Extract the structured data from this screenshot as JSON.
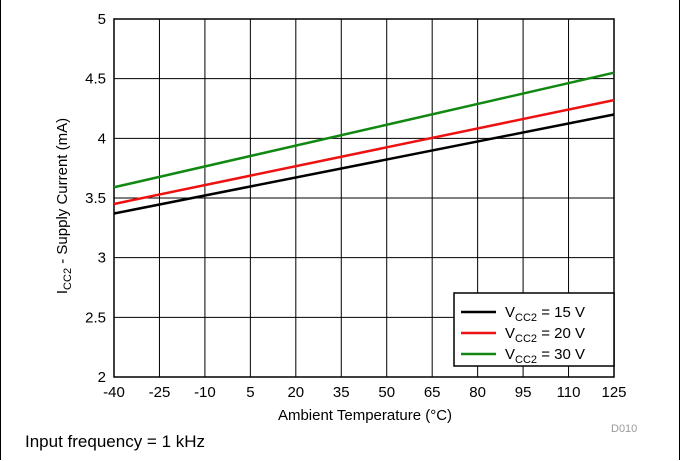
{
  "chart_data": {
    "type": "line",
    "xlabel": "Ambient Temperature (°C)",
    "ylabel_main": "I",
    "ylabel_sub": "CC2",
    "ylabel_rest": " - Supply Current (mA)",
    "xlim": [
      -40,
      125
    ],
    "ylim": [
      2,
      5
    ],
    "x_ticks": [
      -40,
      -25,
      -10,
      5,
      20,
      35,
      50,
      65,
      80,
      95,
      110,
      125
    ],
    "y_ticks": [
      "2",
      "2.5",
      "3",
      "3.5",
      "4",
      "4.5",
      "5"
    ],
    "grid": true,
    "legend_position": "bottom-right",
    "series": [
      {
        "name_main": "V",
        "name_sub": "CC2",
        "name_rest": " = 15 V",
        "color": "#000000",
        "x": [
          -40,
          125
        ],
        "y": [
          3.37,
          4.2
        ]
      },
      {
        "name_main": "V",
        "name_sub": "CC2",
        "name_rest": " = 20 V",
        "color": "#ee1111",
        "x": [
          -40,
          125
        ],
        "y": [
          3.45,
          4.32
        ]
      },
      {
        "name_main": "V",
        "name_sub": "CC2",
        "name_rest": " = 30 V",
        "color": "#118811",
        "x": [
          -40,
          125
        ],
        "y": [
          3.59,
          4.55
        ]
      }
    ]
  },
  "figure_code": "D010",
  "footnote": "Input frequency = 1 kHz"
}
